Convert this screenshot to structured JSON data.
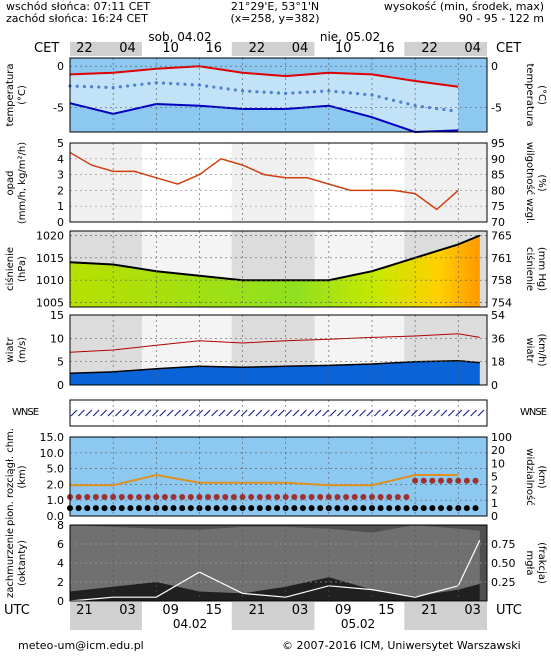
{
  "header": {
    "sunrise": "wschód słońca: 07:11 CET",
    "sunset": "zachód słońca: 16:24 CET",
    "coords": "21°29'E, 53°1'N",
    "grid": "(x=258, y=382)",
    "elev_title": "wysokość (min, środek, max)",
    "elev_values": "90 - 95 - 122 m"
  },
  "top_axis": {
    "tz_left": "CET",
    "tz_right": "CET",
    "day1": "sob, 04.02",
    "day2": "nie, 05.02",
    "hours": [
      "22",
      "04",
      "10",
      "16",
      "22",
      "04",
      "10",
      "16",
      "22",
      "04"
    ]
  },
  "bottom_axis": {
    "tz_left": "UTC",
    "tz_right": "UTC",
    "hours": [
      "21",
      "03",
      "09",
      "15",
      "21",
      "03",
      "09",
      "15",
      "21",
      "03"
    ],
    "date1": "04.02",
    "date2": "05.02"
  },
  "panels": {
    "temp": {
      "left_label": [
        "temperatura",
        "(°C)"
      ],
      "right_label": [
        "(°C)",
        "temperatura"
      ],
      "ticks": [
        "0",
        "-5"
      ]
    },
    "precip": {
      "left_label": [
        "opad",
        "(mm/h, kg/m²/h)"
      ],
      "right_label": [
        "(%)",
        "wilgotność wzgl."
      ],
      "left_ticks": [
        "5",
        "4",
        "3",
        "2",
        "1",
        "0"
      ],
      "right_ticks": [
        "95",
        "90",
        "85",
        "80",
        "75",
        "70"
      ]
    },
    "press": {
      "left_label": [
        "ciśnienie",
        "(hPa)"
      ],
      "right_label": [
        "(mm Hg)",
        "ciśnienie"
      ],
      "left_ticks": [
        "1020",
        "1015",
        "1010",
        "1005"
      ],
      "right_ticks": [
        "765",
        "761",
        "758",
        "754"
      ]
    },
    "wind": {
      "left_label": [
        "wiatr",
        "(m/s)"
      ],
      "right_label": [
        "(km/h)",
        "wiatr"
      ],
      "left_ticks": [
        "15",
        "10",
        "5",
        "0"
      ],
      "right_ticks": [
        "54",
        "36",
        "18",
        "0"
      ]
    },
    "dir": {
      "compass": "WNSE"
    },
    "vis": {
      "left_label": [
        "pion. rozciągł. chm.",
        "(km)"
      ],
      "right_label": [
        "(km)",
        "widzialność"
      ],
      "left_ticks": [
        "15.0",
        "10.0",
        "5.0",
        "2.0",
        "1.0",
        "0.0"
      ],
      "right_ticks": [
        "100",
        "20",
        "10",
        "5",
        "2",
        "1",
        "0"
      ]
    },
    "cloud": {
      "left_label": [
        "zachmurzenie",
        "(oktanty)"
      ],
      "right_label": [
        "(frakcja)",
        "mgła"
      ],
      "left_ticks": [
        "8",
        "6",
        "4",
        "2",
        "0"
      ],
      "right_ticks": [
        "0.75",
        "0.50",
        "0.25"
      ]
    }
  },
  "footer": {
    "email": "meteo-um@icm.edu.pl",
    "copyright": "© 2007-2016 ICM, Uniwersytet Warszawski"
  },
  "colors": {
    "temp_max": "#e00000",
    "temp_min": "#0000c0",
    "temp_mean": "#5080d0",
    "precip_humidity": "#d04010",
    "pressure": "#000000",
    "wind_mean": "#000000",
    "wind_gust": "#b00000",
    "cloud_base": "#d04010",
    "visibility": "#e09020",
    "fog": "#ffffff",
    "panel_bg": "#8cc8f0",
    "night_band": "#d0d0d0"
  },
  "chart_data": [
    {
      "type": "line",
      "name": "temperature",
      "x_hours": [
        0,
        6,
        12,
        18,
        24,
        30,
        36,
        42,
        48,
        54
      ],
      "series": [
        {
          "name": "max",
          "values": [
            -1.0,
            -0.8,
            -0.3,
            0.0,
            -0.8,
            -1.2,
            -0.8,
            -1.0,
            -1.8,
            -2.5
          ]
        },
        {
          "name": "mean",
          "values": [
            -2.4,
            -2.6,
            -2.0,
            -2.3,
            -3.0,
            -3.3,
            -3.0,
            -3.5,
            -4.8,
            -5.5
          ]
        },
        {
          "name": "min",
          "values": [
            -4.5,
            -5.8,
            -4.6,
            -4.8,
            -5.2,
            -5.2,
            -4.8,
            -6.2,
            -8.0,
            -7.8
          ]
        }
      ],
      "ylim": [
        -8,
        1
      ]
    },
    {
      "type": "line",
      "name": "precipitation_humidity",
      "x_hours": [
        0,
        3,
        6,
        9,
        12,
        15,
        18,
        21,
        24,
        27,
        30,
        33,
        36,
        39,
        42,
        45,
        48,
        51,
        54
      ],
      "series": [
        {
          "name": "relative_humidity",
          "values": [
            92,
            88,
            86,
            86,
            84,
            82,
            85,
            90,
            88,
            85,
            84,
            84,
            82,
            80,
            80,
            80,
            79,
            74,
            80
          ]
        }
      ],
      "ylim_left": [
        0,
        5
      ],
      "ylim_right": [
        70,
        95
      ]
    },
    {
      "type": "line",
      "name": "pressure",
      "x_hours": [
        0,
        6,
        12,
        18,
        24,
        30,
        36,
        42,
        48,
        54,
        57
      ],
      "series": [
        {
          "name": "pressure_hpa",
          "values": [
            1014,
            1013.5,
            1012,
            1011,
            1010,
            1010,
            1010,
            1012,
            1015,
            1018,
            1020
          ]
        }
      ],
      "ylim": [
        1004,
        1021
      ]
    },
    {
      "type": "line",
      "name": "wind",
      "x_hours": [
        0,
        6,
        12,
        18,
        24,
        30,
        36,
        42,
        48,
        54,
        57
      ],
      "series": [
        {
          "name": "mean_speed",
          "values": [
            2.5,
            2.8,
            3.5,
            4.0,
            3.8,
            4.0,
            4.2,
            4.5,
            5.0,
            5.2,
            4.8
          ]
        },
        {
          "name": "gust_speed",
          "values": [
            7.0,
            7.5,
            8.5,
            9.5,
            9.0,
            9.5,
            9.8,
            10.2,
            10.5,
            11.0,
            10.2
          ]
        }
      ],
      "ylim": [
        0,
        15
      ]
    },
    {
      "type": "scatter",
      "name": "cloud_base_visibility",
      "x_hours": [
        0,
        6,
        12,
        18,
        24,
        30,
        36,
        42,
        48,
        54
      ],
      "series": [
        {
          "name": "visibility_km",
          "values": [
            5,
            5,
            10,
            6,
            6,
            6,
            5,
            5,
            10,
            10
          ]
        },
        {
          "name": "cloud_base_low",
          "values": [
            0.5,
            0.5,
            0.5,
            0.5,
            0.5,
            0.5,
            0.5,
            0.5,
            0.5,
            0.5
          ]
        },
        {
          "name": "cloud_base_high",
          "values": [
            1.2,
            1.2,
            1.2,
            1.2,
            1.2,
            1.2,
            1.2,
            1.2,
            3.0,
            3.0
          ]
        }
      ]
    },
    {
      "type": "area",
      "name": "cloudiness",
      "x_hours": [
        0,
        6,
        12,
        18,
        24,
        30,
        36,
        42,
        48,
        54,
        57
      ],
      "series": [
        {
          "name": "total_cloud_octants",
          "values": [
            8,
            7.8,
            7.6,
            7.5,
            7.8,
            7.8,
            7.6,
            7.2,
            8,
            7.6,
            7.4
          ]
        },
        {
          "name": "low_cloud_octants",
          "values": [
            1,
            1.5,
            2,
            1,
            0.8,
            1.5,
            2.5,
            1.2,
            0.5,
            1.2,
            1.8
          ]
        },
        {
          "name": "fog_fraction",
          "values": [
            0,
            0.05,
            0.05,
            0.38,
            0.1,
            0.05,
            0.2,
            0.15,
            0.05,
            0.2,
            0.8
          ]
        }
      ]
    }
  ]
}
